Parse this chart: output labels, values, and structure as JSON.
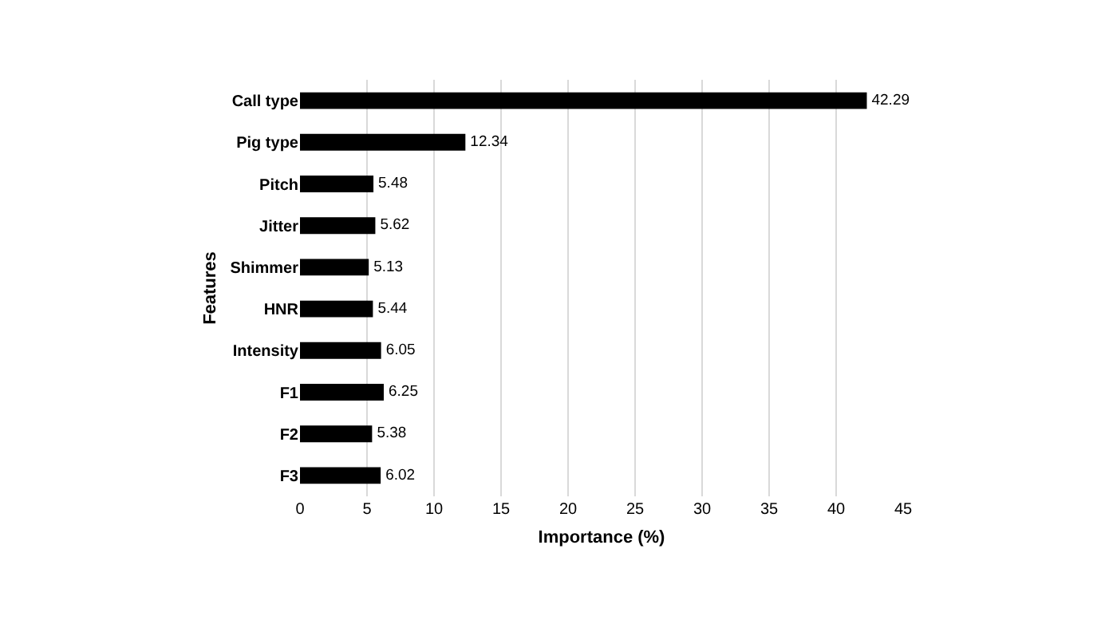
{
  "chart_data": {
    "type": "bar",
    "orientation": "horizontal",
    "xlabel": "Importance (%)",
    "ylabel": "Features",
    "categories": [
      "Call type",
      "Pig type",
      "Pitch",
      "Jitter",
      "Shimmer",
      "HNR",
      "Intensity",
      "F1",
      "F2",
      "F3"
    ],
    "values": [
      42.29,
      12.34,
      5.48,
      5.62,
      5.13,
      5.44,
      6.05,
      6.25,
      5.38,
      6.02
    ],
    "color": "#000000",
    "xlim": [
      0,
      45
    ],
    "xticks": [
      0,
      5,
      10,
      15,
      20,
      25,
      30,
      35,
      40,
      45
    ],
    "grid": "x",
    "data_labels": true
  }
}
